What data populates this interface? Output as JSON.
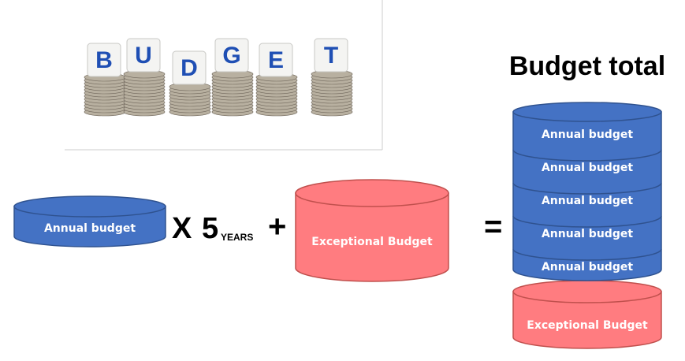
{
  "image": {
    "letters": [
      "B",
      "U",
      "D",
      "G",
      "E",
      "T"
    ]
  },
  "title": "Budget total",
  "formula": {
    "annual": "Annual budget",
    "times": "X",
    "years": "5",
    "years_unit": "YEARS",
    "plus": "+",
    "exceptional": "Exceptional Budget",
    "equals": "="
  },
  "stack": {
    "annual": [
      "Annual budget",
      "Annual budget",
      "Annual budget",
      "Annual budget",
      "Annual budget"
    ],
    "exceptional": "Exceptional Budget"
  }
}
